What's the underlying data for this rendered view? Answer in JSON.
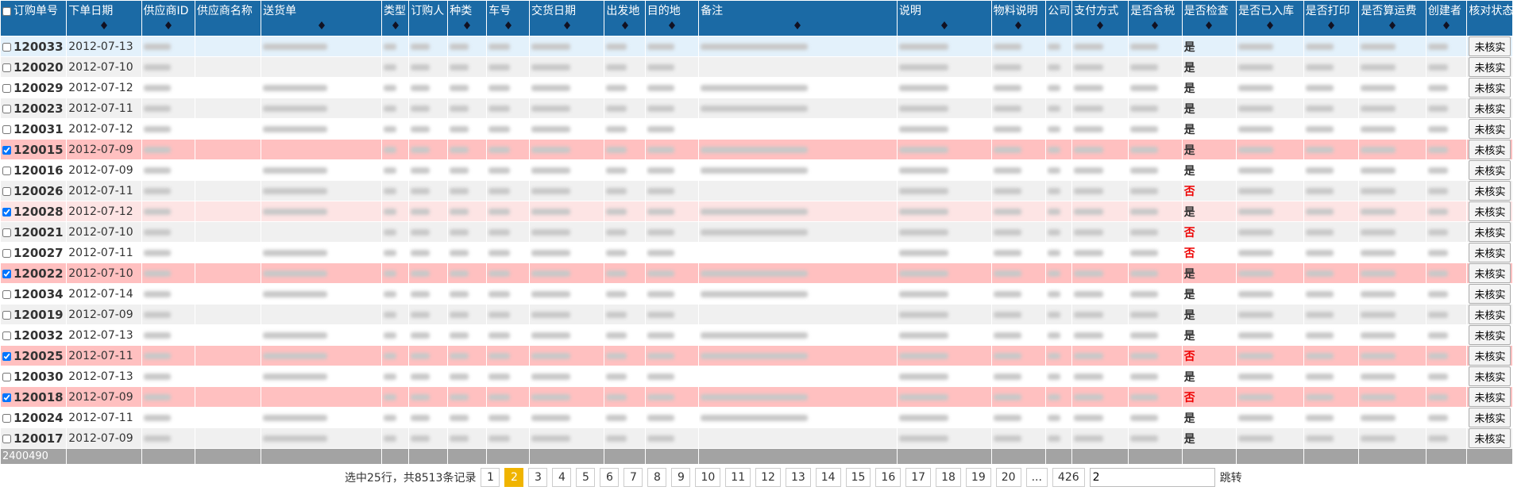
{
  "table": {
    "headers": [
      "订购单号",
      "下单日期",
      "供应商ID",
      "供应商名称",
      "送货单",
      "类型",
      "订购人",
      "种类",
      "车号",
      "交货日期",
      "出发地",
      "目的地",
      "备注",
      "说明",
      "物料说明",
      "公司",
      "支付方式",
      "是否含税",
      "是否检查",
      "是否已入库",
      "是否打印",
      "是否算运费",
      "创建者",
      "核对状态"
    ],
    "rows": [
      {
        "checked": false,
        "id": "120033",
        "date": "2012-07-13",
        "check": "是",
        "status": "未核实"
      },
      {
        "checked": false,
        "id": "120020",
        "date": "2012-07-10",
        "check": "是",
        "status": "未核实"
      },
      {
        "checked": false,
        "id": "120029",
        "date": "2012-07-12",
        "check": "是",
        "status": "未核实"
      },
      {
        "checked": false,
        "id": "120023",
        "date": "2012-07-11",
        "check": "是",
        "status": "未核实"
      },
      {
        "checked": false,
        "id": "120031",
        "date": "2012-07-12",
        "check": "是",
        "status": "未核实"
      },
      {
        "checked": true,
        "id": "120015",
        "date": "2012-07-09",
        "check": "是",
        "status": "未核实"
      },
      {
        "checked": false,
        "id": "120016",
        "date": "2012-07-09",
        "check": "是",
        "status": "未核实"
      },
      {
        "checked": false,
        "id": "120026",
        "date": "2012-07-11",
        "check": "否",
        "status": "未核实"
      },
      {
        "checked": true,
        "id": "120028",
        "date": "2012-07-12",
        "check": "是",
        "status": "未核实"
      },
      {
        "checked": false,
        "id": "120021",
        "date": "2012-07-10",
        "check": "否",
        "status": "未核实"
      },
      {
        "checked": false,
        "id": "120027",
        "date": "2012-07-11",
        "check": "否",
        "status": "未核实"
      },
      {
        "checked": true,
        "id": "120022",
        "date": "2012-07-10",
        "check": "是",
        "status": "未核实"
      },
      {
        "checked": false,
        "id": "120034",
        "date": "2012-07-14",
        "check": "是",
        "status": "未核实"
      },
      {
        "checked": false,
        "id": "120019",
        "date": "2012-07-09",
        "check": "是",
        "status": "未核实"
      },
      {
        "checked": false,
        "id": "120032",
        "date": "2012-07-13",
        "check": "是",
        "status": "未核实"
      },
      {
        "checked": true,
        "id": "120025",
        "date": "2012-07-11",
        "check": "否",
        "status": "未核实"
      },
      {
        "checked": false,
        "id": "120030",
        "date": "2012-07-13",
        "check": "是",
        "status": "未核实"
      },
      {
        "checked": true,
        "id": "120018",
        "date": "2012-07-09",
        "check": "否",
        "status": "未核实"
      },
      {
        "checked": false,
        "id": "120024",
        "date": "2012-07-11",
        "check": "是",
        "status": "未核实"
      },
      {
        "checked": false,
        "id": "120017",
        "date": "2012-07-09",
        "check": "是",
        "status": "未核实"
      }
    ],
    "footer": "2400490"
  },
  "pagination": {
    "summary": "选中25行，共8513条记录",
    "pages": [
      "1",
      "2",
      "3",
      "4",
      "5",
      "6",
      "7",
      "8",
      "9",
      "10",
      "11",
      "12",
      "13",
      "14",
      "15",
      "16",
      "17",
      "18",
      "19",
      "20",
      "...",
      "426"
    ],
    "current": "2",
    "input": "2",
    "jump": "跳转"
  }
}
